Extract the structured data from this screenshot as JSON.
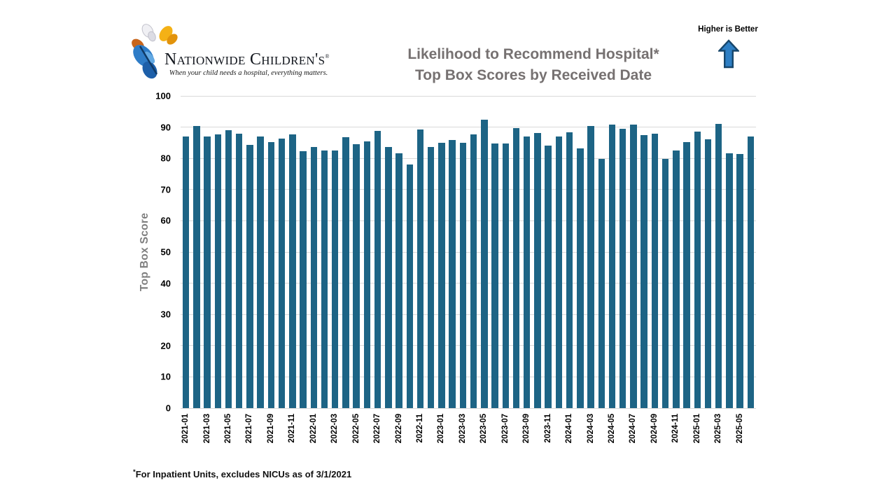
{
  "page": {
    "background": "#ffffff"
  },
  "logo": {
    "org_name": "Nationwide Children's",
    "registered_mark": "®",
    "tagline": "When your child needs a hospital, everything matters.",
    "butterfly_colors": {
      "blue": "#2e7cc7",
      "blue_dark": "#1d5fa9",
      "orange": "#c8651b",
      "orange_dark": "#a14c10",
      "yellow": "#f4b116",
      "yellow_dark": "#e2930b",
      "white": "#f0f0f4",
      "white_dark": "#dcdce4"
    }
  },
  "header": {
    "title_line1": "Likelihood to Recommend Hospital*",
    "title_line2": "Top Box Scores by Received Date",
    "title_color": "#767171",
    "higher_is_better": {
      "label": "Higher is Better",
      "arrow_fill": "#2e7fc4",
      "arrow_stroke": "#17466b"
    }
  },
  "chart_data": {
    "type": "bar",
    "title": "Likelihood to Recommend Hospital* Top Box Scores by Received Date",
    "xlabel": "",
    "ylabel": "Top Box Score",
    "ylim": [
      0,
      100
    ],
    "ytick_step": 10,
    "grid": true,
    "legend": false,
    "bar_color": "#1d6485",
    "gridline_color": "#d9d9d9",
    "x_tick_every": 2,
    "categories": [
      "2021-01",
      "2021-02",
      "2021-03",
      "2021-04",
      "2021-05",
      "2021-06",
      "2021-07",
      "2021-08",
      "2021-09",
      "2021-10",
      "2021-11",
      "2021-12",
      "2022-01",
      "2022-02",
      "2022-03",
      "2022-04",
      "2022-05",
      "2022-06",
      "2022-07",
      "2022-08",
      "2022-09",
      "2022-10",
      "2022-11",
      "2022-12",
      "2023-01",
      "2023-02",
      "2023-03",
      "2023-04",
      "2023-05",
      "2023-06",
      "2023-07",
      "2023-08",
      "2023-09",
      "2023-10",
      "2023-11",
      "2023-12",
      "2024-01",
      "2024-02",
      "2024-03",
      "2024-04",
      "2024-05",
      "2024-06",
      "2024-07",
      "2024-08",
      "2024-09",
      "2024-10",
      "2024-11",
      "2024-12",
      "2025-01",
      "2025-02",
      "2025-03",
      "2025-04",
      "2025-05",
      "2025-06"
    ],
    "values": [
      87.1,
      90.3,
      86.9,
      87.6,
      89.1,
      88.0,
      84.2,
      86.9,
      85.3,
      86.4,
      87.7,
      82.3,
      83.7,
      82.5,
      82.6,
      86.8,
      84.5,
      85.5,
      88.9,
      83.7,
      81.7,
      78.1,
      89.3,
      83.6,
      85.0,
      85.9,
      85.0,
      87.6,
      92.3,
      84.7,
      84.7,
      89.6,
      87.1,
      88.2,
      84.1,
      86.9,
      88.3,
      83.1,
      90.4,
      79.9,
      90.8,
      89.5,
      90.8,
      87.5,
      88.0,
      79.8,
      82.5,
      85.2,
      88.6,
      86.0,
      91.0,
      81.6,
      81.4,
      86.9
    ]
  },
  "footnote": {
    "marker": "*",
    "text": "For Inpatient Units, excludes NICUs as of 3/1/2021"
  }
}
